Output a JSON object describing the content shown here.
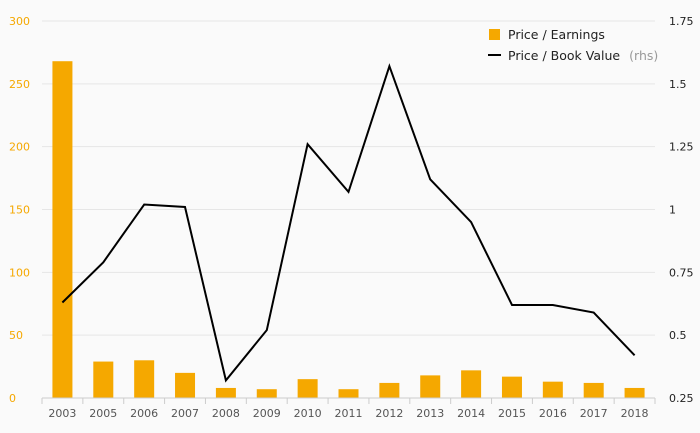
{
  "chart_data": {
    "type": "bar+line",
    "categories": [
      "2003",
      "2005",
      "2006",
      "2007",
      "2008",
      "2009",
      "2010",
      "2011",
      "2012",
      "2013",
      "2014",
      "2015",
      "2016",
      "2017",
      "2018"
    ],
    "series": [
      {
        "name": "Price / Earnings",
        "type": "bar",
        "axis": "left",
        "color": "#f5a800",
        "values": [
          268,
          29,
          30,
          20,
          8,
          7,
          15,
          7,
          12,
          18,
          22,
          17,
          13,
          12,
          8
        ]
      },
      {
        "name": "Price / Book Value",
        "name_note": "(rhs)",
        "type": "line",
        "axis": "right",
        "color": "#000000",
        "values": [
          0.63,
          0.79,
          1.02,
          1.01,
          0.32,
          0.52,
          1.26,
          1.07,
          1.57,
          1.12,
          0.95,
          0.62,
          0.62,
          0.59,
          0.42
        ]
      }
    ],
    "y_left": {
      "ylim": [
        0,
        300
      ],
      "ticks": [
        "0",
        "50",
        "100",
        "150",
        "200",
        "250",
        "300"
      ],
      "color": "#f5a800"
    },
    "y_right": {
      "ylim": [
        0.25,
        1.75
      ],
      "ticks": [
        "0.25",
        "0.5",
        "0.75",
        "1",
        "1.25",
        "1.5",
        "1.75"
      ]
    },
    "grid": true,
    "legend_position": "top-right"
  }
}
